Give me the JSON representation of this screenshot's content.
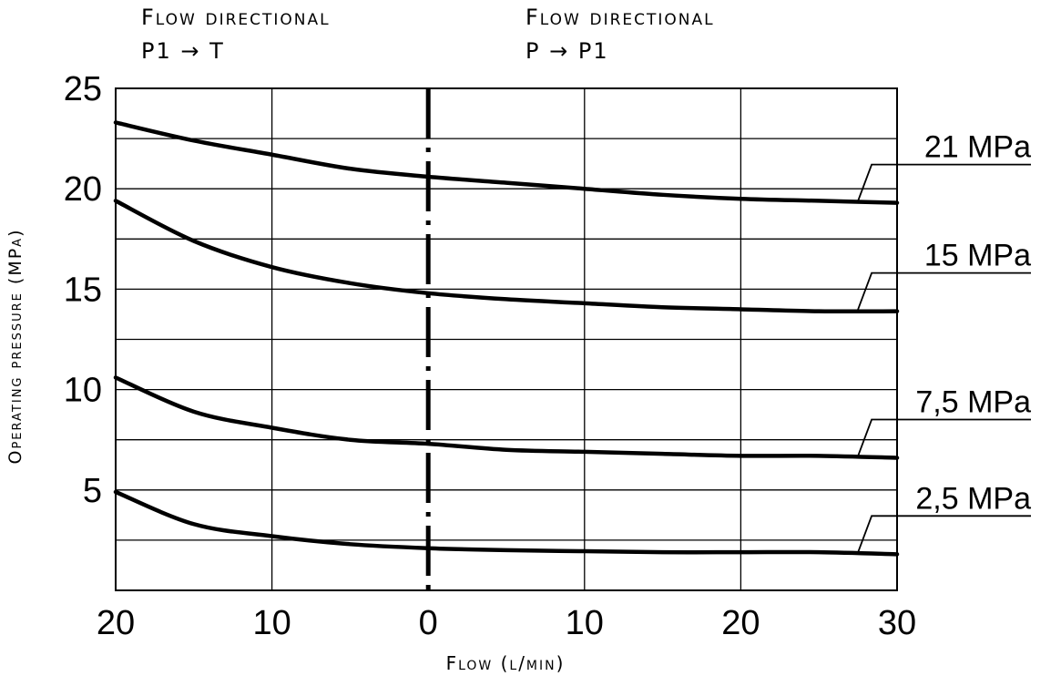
{
  "chart_data": {
    "type": "line",
    "xlabel": "Flow (l/min)",
    "ylabel": "Operating pressure (MPa)",
    "left_region_label": [
      "Flow directional",
      "P1 → T"
    ],
    "right_region_label": [
      "Flow directional",
      "P → P1"
    ],
    "x_ticks": [
      "20",
      "10",
      "0",
      "10",
      "20",
      "30"
    ],
    "y_ticks": [
      "5",
      "10",
      "15",
      "20",
      "25"
    ],
    "xlim": [
      -20,
      30
    ],
    "ylim": [
      0,
      25
    ],
    "grid": true,
    "series": [
      {
        "name": "21 MPa",
        "x": [
          -20,
          -15,
          -10,
          -5,
          0,
          5,
          10,
          15,
          20,
          25,
          30
        ],
        "y": [
          23.3,
          22.4,
          21.7,
          21.0,
          20.6,
          20.3,
          20.0,
          19.7,
          19.5,
          19.4,
          19.3
        ]
      },
      {
        "name": "15 MPa",
        "x": [
          -20,
          -15,
          -10,
          -5,
          0,
          5,
          10,
          15,
          20,
          25,
          30
        ],
        "y": [
          19.4,
          17.4,
          16.1,
          15.3,
          14.8,
          14.5,
          14.3,
          14.1,
          14.0,
          13.9,
          13.9
        ]
      },
      {
        "name": "7,5 MPa",
        "x": [
          -20,
          -15,
          -10,
          -5,
          0,
          5,
          10,
          15,
          20,
          25,
          30
        ],
        "y": [
          10.6,
          8.9,
          8.1,
          7.5,
          7.3,
          7.0,
          6.9,
          6.8,
          6.7,
          6.7,
          6.6
        ]
      },
      {
        "name": "2,5 MPa",
        "x": [
          -20,
          -15,
          -10,
          -5,
          0,
          5,
          10,
          15,
          20,
          25,
          30
        ],
        "y": [
          4.9,
          3.3,
          2.7,
          2.3,
          2.1,
          2.0,
          1.95,
          1.9,
          1.9,
          1.9,
          1.8
        ]
      }
    ]
  }
}
